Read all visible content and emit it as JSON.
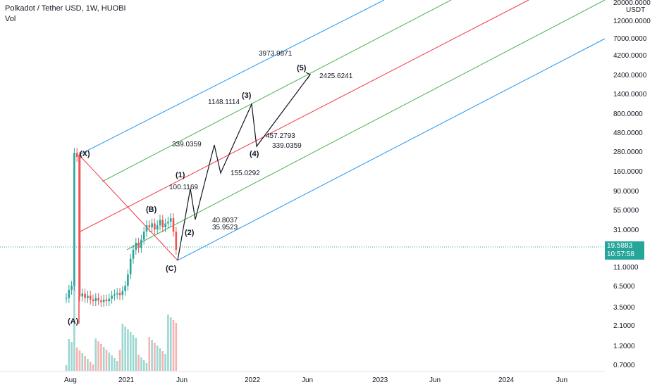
{
  "header": {
    "title": "Polkadot / Tether USD, 1W, HUOBI",
    "indicator": "Vol"
  },
  "price_tag": {
    "price": "19.5883",
    "countdown": "10:57:58"
  },
  "chart_data": {
    "type": "candlestick",
    "title": "Polkadot / Tether USD, 1W, HUOBI",
    "y_unit": "USDT",
    "y_scale": "log",
    "y_ticks": [
      "20000.0000",
      "12000.0000",
      "7000.0000",
      "4200.0000",
      "2400.0000",
      "1400.0000",
      "800.0000",
      "480.0000",
      "280.0000",
      "160.0000",
      "90.0000",
      "55.0000",
      "31.0000",
      "11.0000",
      "6.5000",
      "3.5000",
      "2.1000",
      "1.2000",
      "0.7000"
    ],
    "x_ticks": [
      "Aug",
      "2021",
      "Jun",
      "2022",
      "Jun",
      "2023",
      "Jun",
      "2024",
      "Jun"
    ],
    "last_price": 19.5883,
    "wave_labels": [
      {
        "label": "(X)",
        "date": "2020-08-24",
        "price": 250
      },
      {
        "label": "(A)",
        "date": "2020-08-24",
        "price": 3
      },
      {
        "label": "(B)",
        "date": "2021-05-10",
        "price": 42
      },
      {
        "label": "(C)",
        "date": "2021-06-21",
        "price": 12
      },
      {
        "label": "(1)",
        "date": "2021-07-12",
        "price": 120
      },
      {
        "label": "(2)",
        "date": "2021-07-26",
        "price": 30
      },
      {
        "label": "(3)",
        "date": "2021-12-13",
        "price": 1148.1114
      },
      {
        "label": "(4)",
        "date": "2022-01-17",
        "price": 339.0359
      },
      {
        "label": "(5)",
        "date": "2022-06-27",
        "price": 2425.6241
      }
    ],
    "annotations": [
      "3973.9871",
      "2425.6241",
      "1148.1114",
      "457.2793",
      "339.0359",
      "339.0359",
      "155.0292",
      "100.1169",
      "40.8037",
      "35.9523"
    ]
  }
}
